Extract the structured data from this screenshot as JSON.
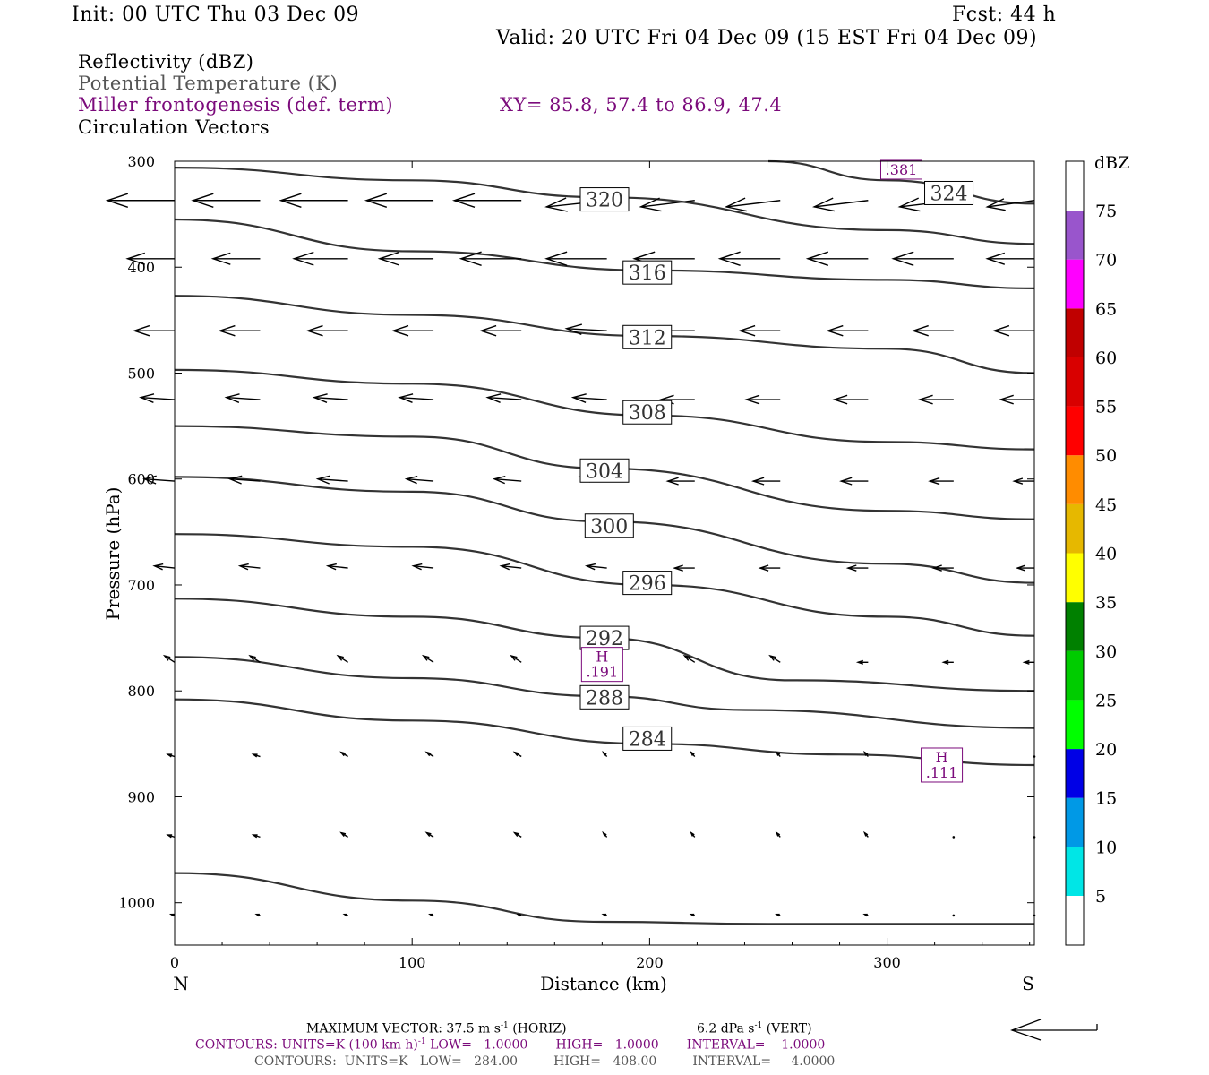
{
  "header": {
    "init": "Init: 00 UTC Thu 03 Dec 09",
    "fcst": "Fcst:   44 h",
    "valid": "Valid: 20 UTC Fri 04 Dec 09 (15 EST Fri 04 Dec 09)"
  },
  "legend": {
    "reflectivity": "Reflectivity (dBZ)",
    "theta": "Potential Temperature (K)",
    "miller": "Miller frontogenesis (def. term)",
    "xy": "XY=  85.8, 57.4 to  86.9, 47.4",
    "vectors": "Circulation Vectors"
  },
  "colors": {
    "theta_line": "#333333",
    "purple": "#7b0a7b",
    "vector": "#000000"
  },
  "chart_data": {
    "type": "cross-section",
    "xlabel": "Distance (km)",
    "ylabel": "Pressure (hPa)",
    "xlim": [
      0,
      362
    ],
    "ylim": [
      1040,
      300
    ],
    "x_ticks": [
      0,
      100,
      200,
      300
    ],
    "y_ticks": [
      300,
      400,
      500,
      600,
      700,
      800,
      900,
      1000
    ],
    "x_start_label": "N",
    "x_end_label": "S",
    "theta_contours": [
      {
        "label": "284",
        "label_pos": [
          199,
          845
        ],
        "points": [
          [
            0,
            808
          ],
          [
            100,
            828
          ],
          [
            200,
            850
          ],
          [
            280,
            860
          ],
          [
            362,
            870
          ]
        ]
      },
      {
        "label": "288",
        "label_pos": [
          181,
          806
        ],
        "points": [
          [
            0,
            768
          ],
          [
            100,
            788
          ],
          [
            180,
            805
          ],
          [
            240,
            818
          ],
          [
            362,
            835
          ]
        ]
      },
      {
        "label": "292",
        "label_pos": [
          181,
          750
        ],
        "points": [
          [
            0,
            713
          ],
          [
            100,
            730
          ],
          [
            180,
            750
          ],
          [
            260,
            790
          ],
          [
            362,
            800
          ]
        ]
      },
      {
        "label": "296",
        "label_pos": [
          199,
          698
        ],
        "points": [
          [
            0,
            652
          ],
          [
            100,
            664
          ],
          [
            200,
            700
          ],
          [
            300,
            730
          ],
          [
            362,
            748
          ]
        ]
      },
      {
        "label": "300",
        "label_pos": [
          183,
          644
        ],
        "points": [
          [
            0,
            598
          ],
          [
            100,
            612
          ],
          [
            180,
            640
          ],
          [
            300,
            680
          ],
          [
            362,
            698
          ]
        ]
      },
      {
        "label": "304",
        "label_pos": [
          181,
          592
        ],
        "points": [
          [
            0,
            550
          ],
          [
            100,
            560
          ],
          [
            180,
            590
          ],
          [
            300,
            630
          ],
          [
            362,
            638
          ]
        ]
      },
      {
        "label": "308",
        "label_pos": [
          199,
          537
        ],
        "points": [
          [
            0,
            497
          ],
          [
            100,
            510
          ],
          [
            200,
            540
          ],
          [
            300,
            565
          ],
          [
            362,
            572
          ]
        ]
      },
      {
        "label": "312",
        "label_pos": [
          199,
          466
        ],
        "points": [
          [
            0,
            427
          ],
          [
            100,
            445
          ],
          [
            200,
            465
          ],
          [
            300,
            477
          ],
          [
            362,
            500
          ]
        ]
      },
      {
        "label": "316",
        "label_pos": [
          199,
          405
        ],
        "points": [
          [
            0,
            355
          ],
          [
            100,
            385
          ],
          [
            200,
            403
          ],
          [
            300,
            412
          ],
          [
            362,
            420
          ]
        ]
      },
      {
        "label": "320",
        "label_pos": [
          181,
          336
        ],
        "points": [
          [
            0,
            306
          ],
          [
            100,
            318
          ],
          [
            180,
            334
          ],
          [
            300,
            365
          ],
          [
            362,
            378
          ]
        ]
      },
      {
        "label": "324",
        "label_pos": [
          326,
          330
        ],
        "points": [
          [
            250,
            300
          ],
          [
            300,
            318
          ],
          [
            362,
            340
          ]
        ]
      },
      {
        "label": "",
        "label_pos": null,
        "points": [
          [
            0,
            972
          ],
          [
            100,
            998
          ],
          [
            180,
            1018
          ],
          [
            250,
            1020
          ],
          [
            362,
            1020
          ]
        ]
      }
    ],
    "miller_labels": [
      {
        "lines": [
          "H",
          ".191"
        ],
        "x": 180,
        "p": 775
      },
      {
        "lines": [
          "H",
          ".111"
        ],
        "x": 323,
        "p": 870
      },
      {
        "lines": [
          ".381"
        ],
        "x": 306,
        "p": 308
      }
    ],
    "vector_x": [
      0,
      36,
      73,
      109,
      146,
      182,
      219,
      255,
      292,
      328,
      362
    ],
    "vector_rows": [
      {
        "p": 337,
        "u": [
          -18.7,
          -18.7,
          -18.7,
          -18.7,
          -18.7,
          -16.8,
          -15.0,
          -15.0,
          -15.0,
          -15.0,
          -13.1
        ],
        "w": [
          0,
          0,
          0,
          0,
          0,
          -0.6,
          -0.6,
          -0.6,
          -0.6,
          -0.6,
          -0.6
        ]
      },
      {
        "p": 392,
        "u": [
          -13.1,
          -13.1,
          -15.0,
          -15.0,
          -16.8,
          -16.8,
          -16.8,
          -16.8,
          -16.8,
          -16.8,
          -13.1
        ],
        "w": [
          0,
          0,
          0,
          0,
          0,
          0,
          0,
          0,
          0,
          0,
          0
        ]
      },
      {
        "p": 460,
        "u": [
          -11.2,
          -11.2,
          -11.2,
          -11.2,
          -11.2,
          -11.2,
          -11.2,
          -11.2,
          -11.2,
          -11.2,
          -11.2
        ],
        "w": [
          0,
          0,
          0,
          0,
          0,
          0.2,
          0,
          0,
          0,
          0,
          0
        ]
      },
      {
        "p": 525,
        "u": [
          -9.4,
          -9.4,
          -9.4,
          -9.4,
          -9.4,
          -9.4,
          -9.4,
          -9.4,
          -9.4,
          -9.4,
          -9.4
        ],
        "w": [
          0.2,
          0.2,
          0.2,
          0.2,
          0.2,
          0.2,
          0,
          0,
          0,
          0,
          0
        ]
      },
      {
        "p": 602,
        "u": [
          -8.4,
          -8.4,
          -8.4,
          -7.5,
          -7.5,
          -7.5,
          -7.5,
          -7.5,
          -7.5,
          -6.6,
          -5.6
        ],
        "w": [
          0.2,
          0.2,
          0.2,
          0.2,
          0.2,
          0.4,
          0,
          0,
          0,
          0,
          0
        ]
      },
      {
        "p": 684,
        "u": [
          -5.6,
          -5.6,
          -5.6,
          -5.6,
          -5.6,
          -5.6,
          -5.6,
          -5.6,
          -5.6,
          -5.6,
          -4.7
        ],
        "w": [
          0.2,
          0.2,
          0.2,
          0.2,
          0.2,
          0.2,
          0,
          0,
          0,
          0,
          0
        ]
      },
      {
        "p": 773,
        "u": [
          -2.8,
          -2.8,
          -2.8,
          -2.8,
          -2.8,
          -2.8,
          -2.8,
          -2.8,
          -2.8,
          -2.8,
          -2.8
        ],
        "w": [
          0.6,
          0.6,
          0.6,
          0.6,
          0.6,
          0.6,
          0.6,
          0.6,
          0,
          0,
          0
        ]
      },
      {
        "p": 862,
        "u": [
          -1.9,
          -1.9,
          -1.9,
          -1.9,
          -1.9,
          -1.0,
          -1.0,
          -1.0,
          -1.0,
          0,
          0
        ],
        "w": [
          0.2,
          0.2,
          0.4,
          0.4,
          0.4,
          0.4,
          0.4,
          0.4,
          0.4,
          0,
          0
        ]
      },
      {
        "p": 938,
        "u": [
          -1.9,
          -1.9,
          -1.9,
          -1.9,
          -1.9,
          -1.0,
          -1.0,
          -1.0,
          -1.0,
          0,
          0
        ],
        "w": [
          0.2,
          0.2,
          0.4,
          0.4,
          0.4,
          0.4,
          0.4,
          0.4,
          0.4,
          0,
          0
        ]
      },
      {
        "p": 1012,
        "u": [
          -1.0,
          -1.0,
          -1.0,
          -1.0,
          -1.0,
          -1.0,
          -1.0,
          -1.0,
          -1.0,
          0,
          0
        ],
        "w": [
          0.1,
          0.1,
          0.1,
          0.1,
          0.1,
          0.1,
          0.1,
          0.1,
          0.1,
          0,
          0
        ]
      }
    ],
    "colorbar": {
      "label": "dBZ",
      "bins": [
        {
          "label": "5",
          "color": "#00e6e6"
        },
        {
          "label": "10",
          "color": "#0099e6"
        },
        {
          "label": "15",
          "color": "#0000e6"
        },
        {
          "label": "20",
          "color": "#00ff00"
        },
        {
          "label": "25",
          "color": "#00cc00"
        },
        {
          "label": "30",
          "color": "#008000"
        },
        {
          "label": "35",
          "color": "#ffff00"
        },
        {
          "label": "40",
          "color": "#e6b800"
        },
        {
          "label": "45",
          "color": "#ff8c00"
        },
        {
          "label": "50",
          "color": "#ff0000"
        },
        {
          "label": "55",
          "color": "#d90000"
        },
        {
          "label": "60",
          "color": "#c00000"
        },
        {
          "label": "65",
          "color": "#ff00ff"
        },
        {
          "label": "70",
          "color": "#9955cc"
        },
        {
          "label": "75",
          "color": "#ffffff"
        }
      ]
    }
  },
  "footer": {
    "max_vector": "MAXIMUM VECTOR:  37.5 m s",
    "max_vector_exp": "-1",
    "horiz": "(HORIZ)",
    "vert": "6.2 dPa s",
    "vert_exp": "-1",
    "vert_tail": "(VERT)",
    "contours1_a": "CONTOURS:  UNITS=K (100 km h)",
    "contours1_exp": "-1",
    "contours1_b": "LOW=   1.0000       HIGH=   1.0000       INTERVAL=    1.0000",
    "contours2": "CONTOURS:  UNITS=K   LOW=   284.00         HIGH=   408.00         INTERVAL=     4.0000"
  }
}
